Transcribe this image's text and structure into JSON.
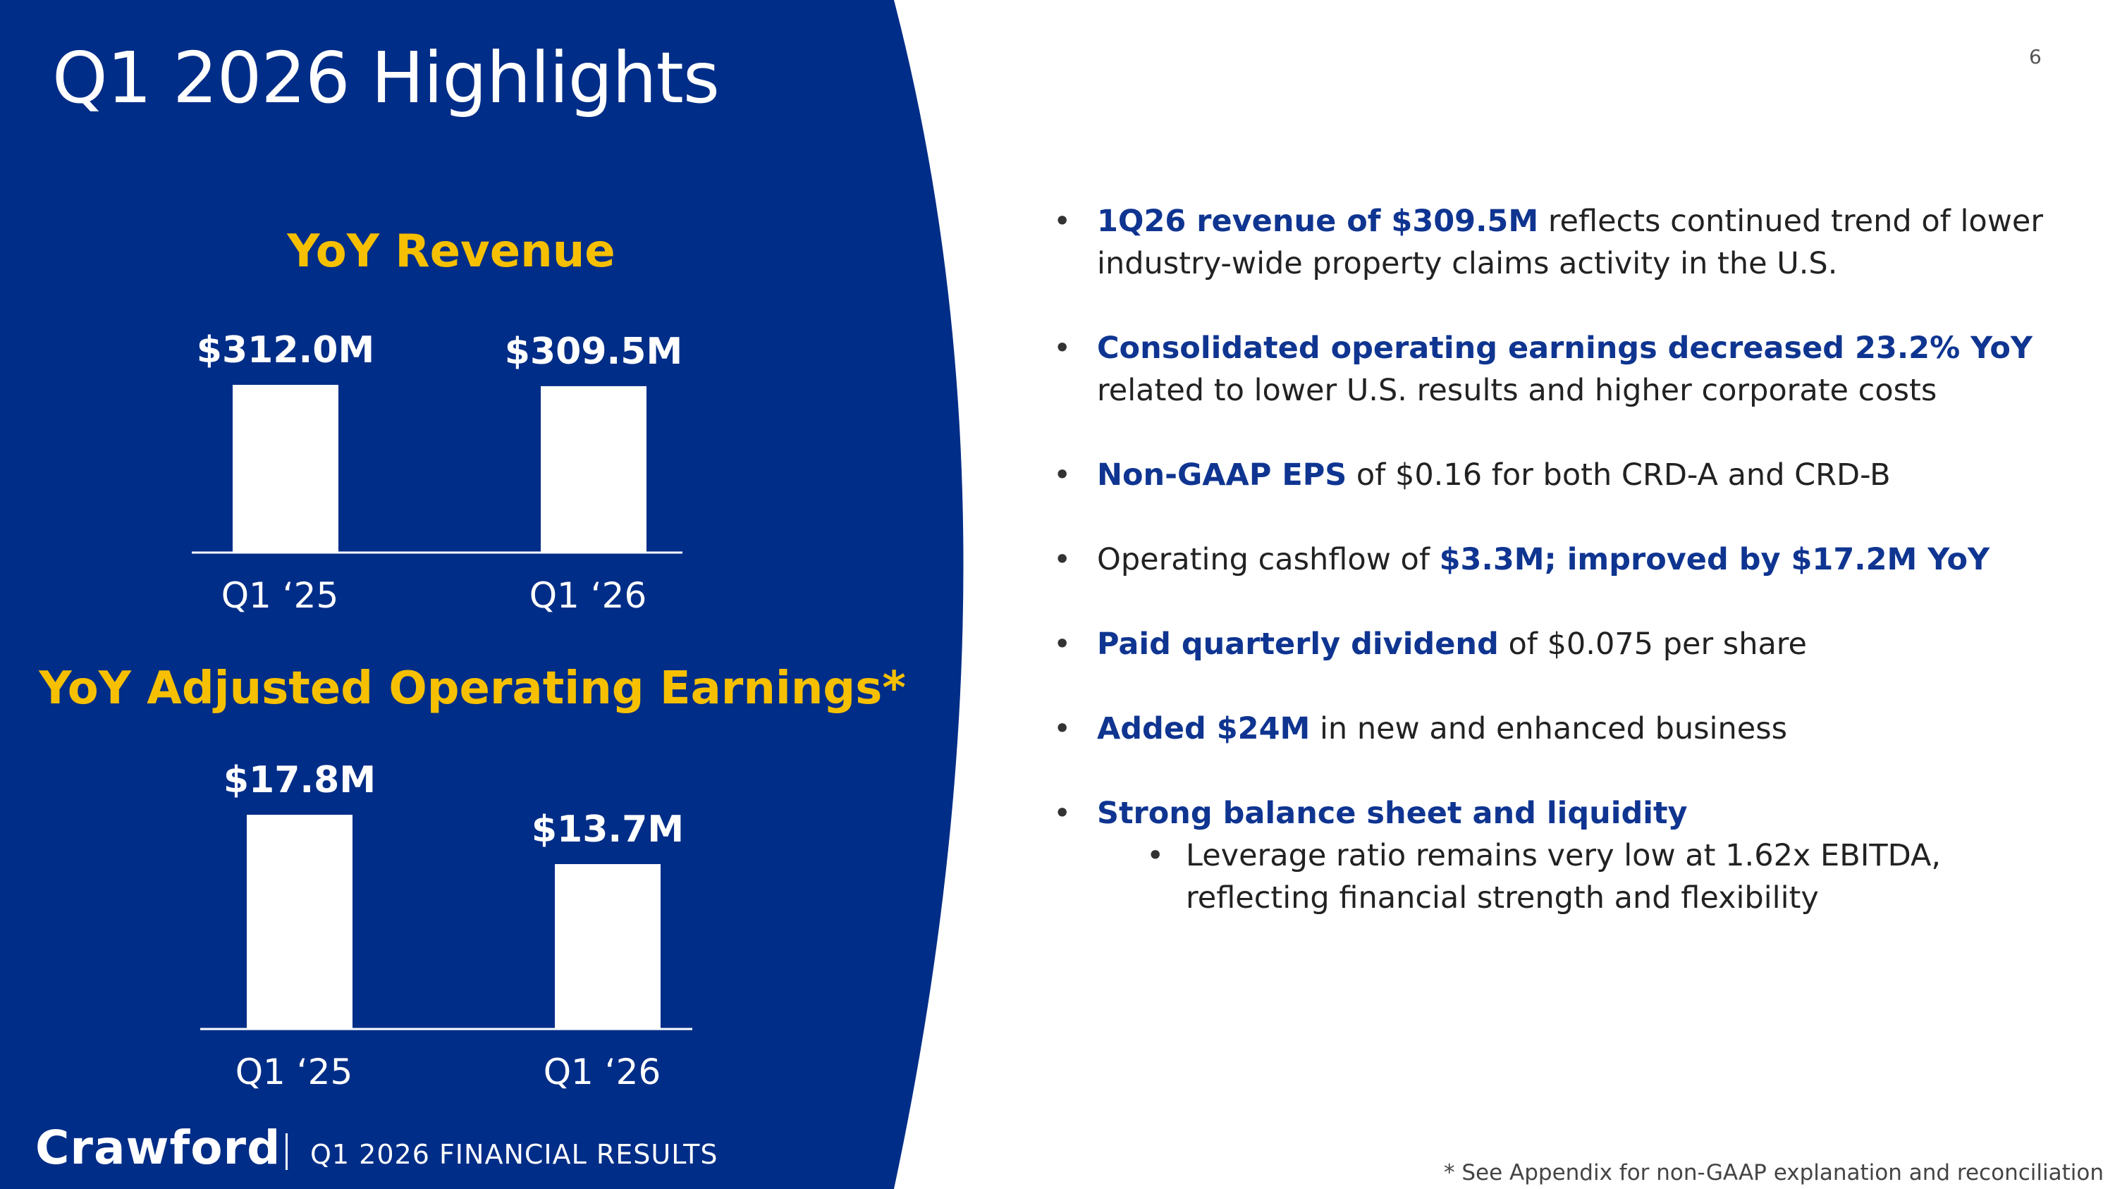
{
  "page": {
    "title": "Q1 2026 Highlights",
    "page_number": "6",
    "footer_logo": "Crawford",
    "footer_text": "Q1 2026 FINANCIAL RESULTS",
    "footnote": "* See Appendix for non-GAAP explanation and reconciliation"
  },
  "colors": {
    "panel": "#002d87",
    "accent": "#f6c000",
    "highlight": "#0f3591",
    "bar": "#ffffff"
  },
  "chart_data": [
    {
      "type": "bar",
      "title": "YoY Revenue",
      "categories": [
        "Q1 ‘25",
        "Q1 ‘26"
      ],
      "values": [
        312.0,
        309.5
      ],
      "data_labels": [
        "$312.0M",
        "$309.5M"
      ],
      "xlabel": "",
      "ylabel": "",
      "grid": false
    },
    {
      "type": "bar",
      "title": "YoY Adjusted Operating Earnings*",
      "categories": [
        "Q1 ‘25",
        "Q1 ‘26"
      ],
      "values": [
        17.8,
        13.7
      ],
      "data_labels": [
        "$17.8M",
        "$13.7M"
      ],
      "xlabel": "",
      "ylabel": "",
      "grid": false
    }
  ],
  "bullets": [
    {
      "parts": [
        {
          "text": "1Q26 revenue of $309.5M",
          "hl": true
        },
        {
          "text": " reflects continued trend of lower industry-wide property claims activity in the U.S.",
          "hl": false
        }
      ]
    },
    {
      "parts": [
        {
          "text": "Consolidated operating earnings decreased 23.2% YoY",
          "hl": true
        },
        {
          "text": " related to lower U.S. results and higher corporate costs",
          "hl": false
        }
      ]
    },
    {
      "parts": [
        {
          "text": "Non-GAAP EPS",
          "hl": true
        },
        {
          "text": " of $0.16 for both CRD-A and CRD-B",
          "hl": false
        }
      ]
    },
    {
      "parts": [
        {
          "text": "Operating cashflow of ",
          "hl": false
        },
        {
          "text": "$3.3M; improved by $17.2M YoY",
          "hl": true
        }
      ]
    },
    {
      "parts": [
        {
          "text": "Paid quarterly dividend",
          "hl": true
        },
        {
          "text": " of $0.075 per share",
          "hl": false
        }
      ]
    },
    {
      "parts": [
        {
          "text": "Added $24M",
          "hl": true
        },
        {
          "text": " in new and enhanced business",
          "hl": false
        }
      ]
    },
    {
      "parts": [
        {
          "text": "Strong balance sheet and liquidity",
          "hl": true
        }
      ],
      "sub": [
        "Leverage ratio remains very low at 1.62x EBITDA, reflecting financial strength and flexibility"
      ]
    }
  ]
}
